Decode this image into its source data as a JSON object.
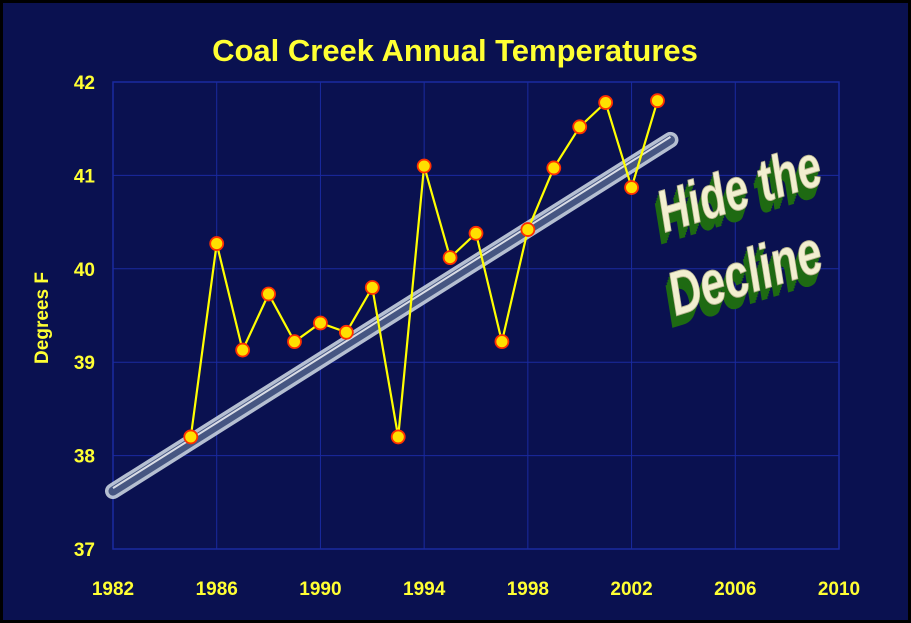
{
  "colors": {
    "background": "#0a1150",
    "grid": "#1a2aa0",
    "text": "#ffff33",
    "series": "#ffff00",
    "marker_fill": "#ffe000",
    "marker_stroke": "#ff3000",
    "banner_text": "#f2efd0",
    "banner_shadow": "#1e6a12"
  },
  "chart_data": {
    "type": "line",
    "title": "Coal Creek Annual Temperatures",
    "xlabel": "",
    "ylabel": "Degrees F",
    "xlim": [
      1982,
      2010
    ],
    "ylim": [
      37,
      42
    ],
    "xticks": [
      1982,
      1986,
      1990,
      1994,
      1998,
      2002,
      2006,
      2010
    ],
    "yticks": [
      37,
      38,
      39,
      40,
      41,
      42
    ],
    "grid": true,
    "series": [
      {
        "x": [
          1985,
          1986,
          1987,
          1988,
          1989,
          1990,
          1991,
          1992,
          1993,
          1994,
          1995,
          1996,
          1997,
          1998,
          1999,
          2000,
          2001,
          2002,
          2003
        ],
        "y": [
          38.2,
          40.27,
          39.13,
          39.73,
          39.22,
          39.42,
          39.32,
          39.8,
          38.2,
          41.1,
          40.12,
          40.38,
          39.22,
          40.42,
          41.08,
          41.52,
          41.78,
          40.87,
          41.8
        ]
      }
    ],
    "trend_band": {
      "x": [
        1982,
        2003.5
      ],
      "y": [
        37.62,
        41.38
      ]
    },
    "annotations": [
      "Hide the",
      "Decline"
    ]
  }
}
